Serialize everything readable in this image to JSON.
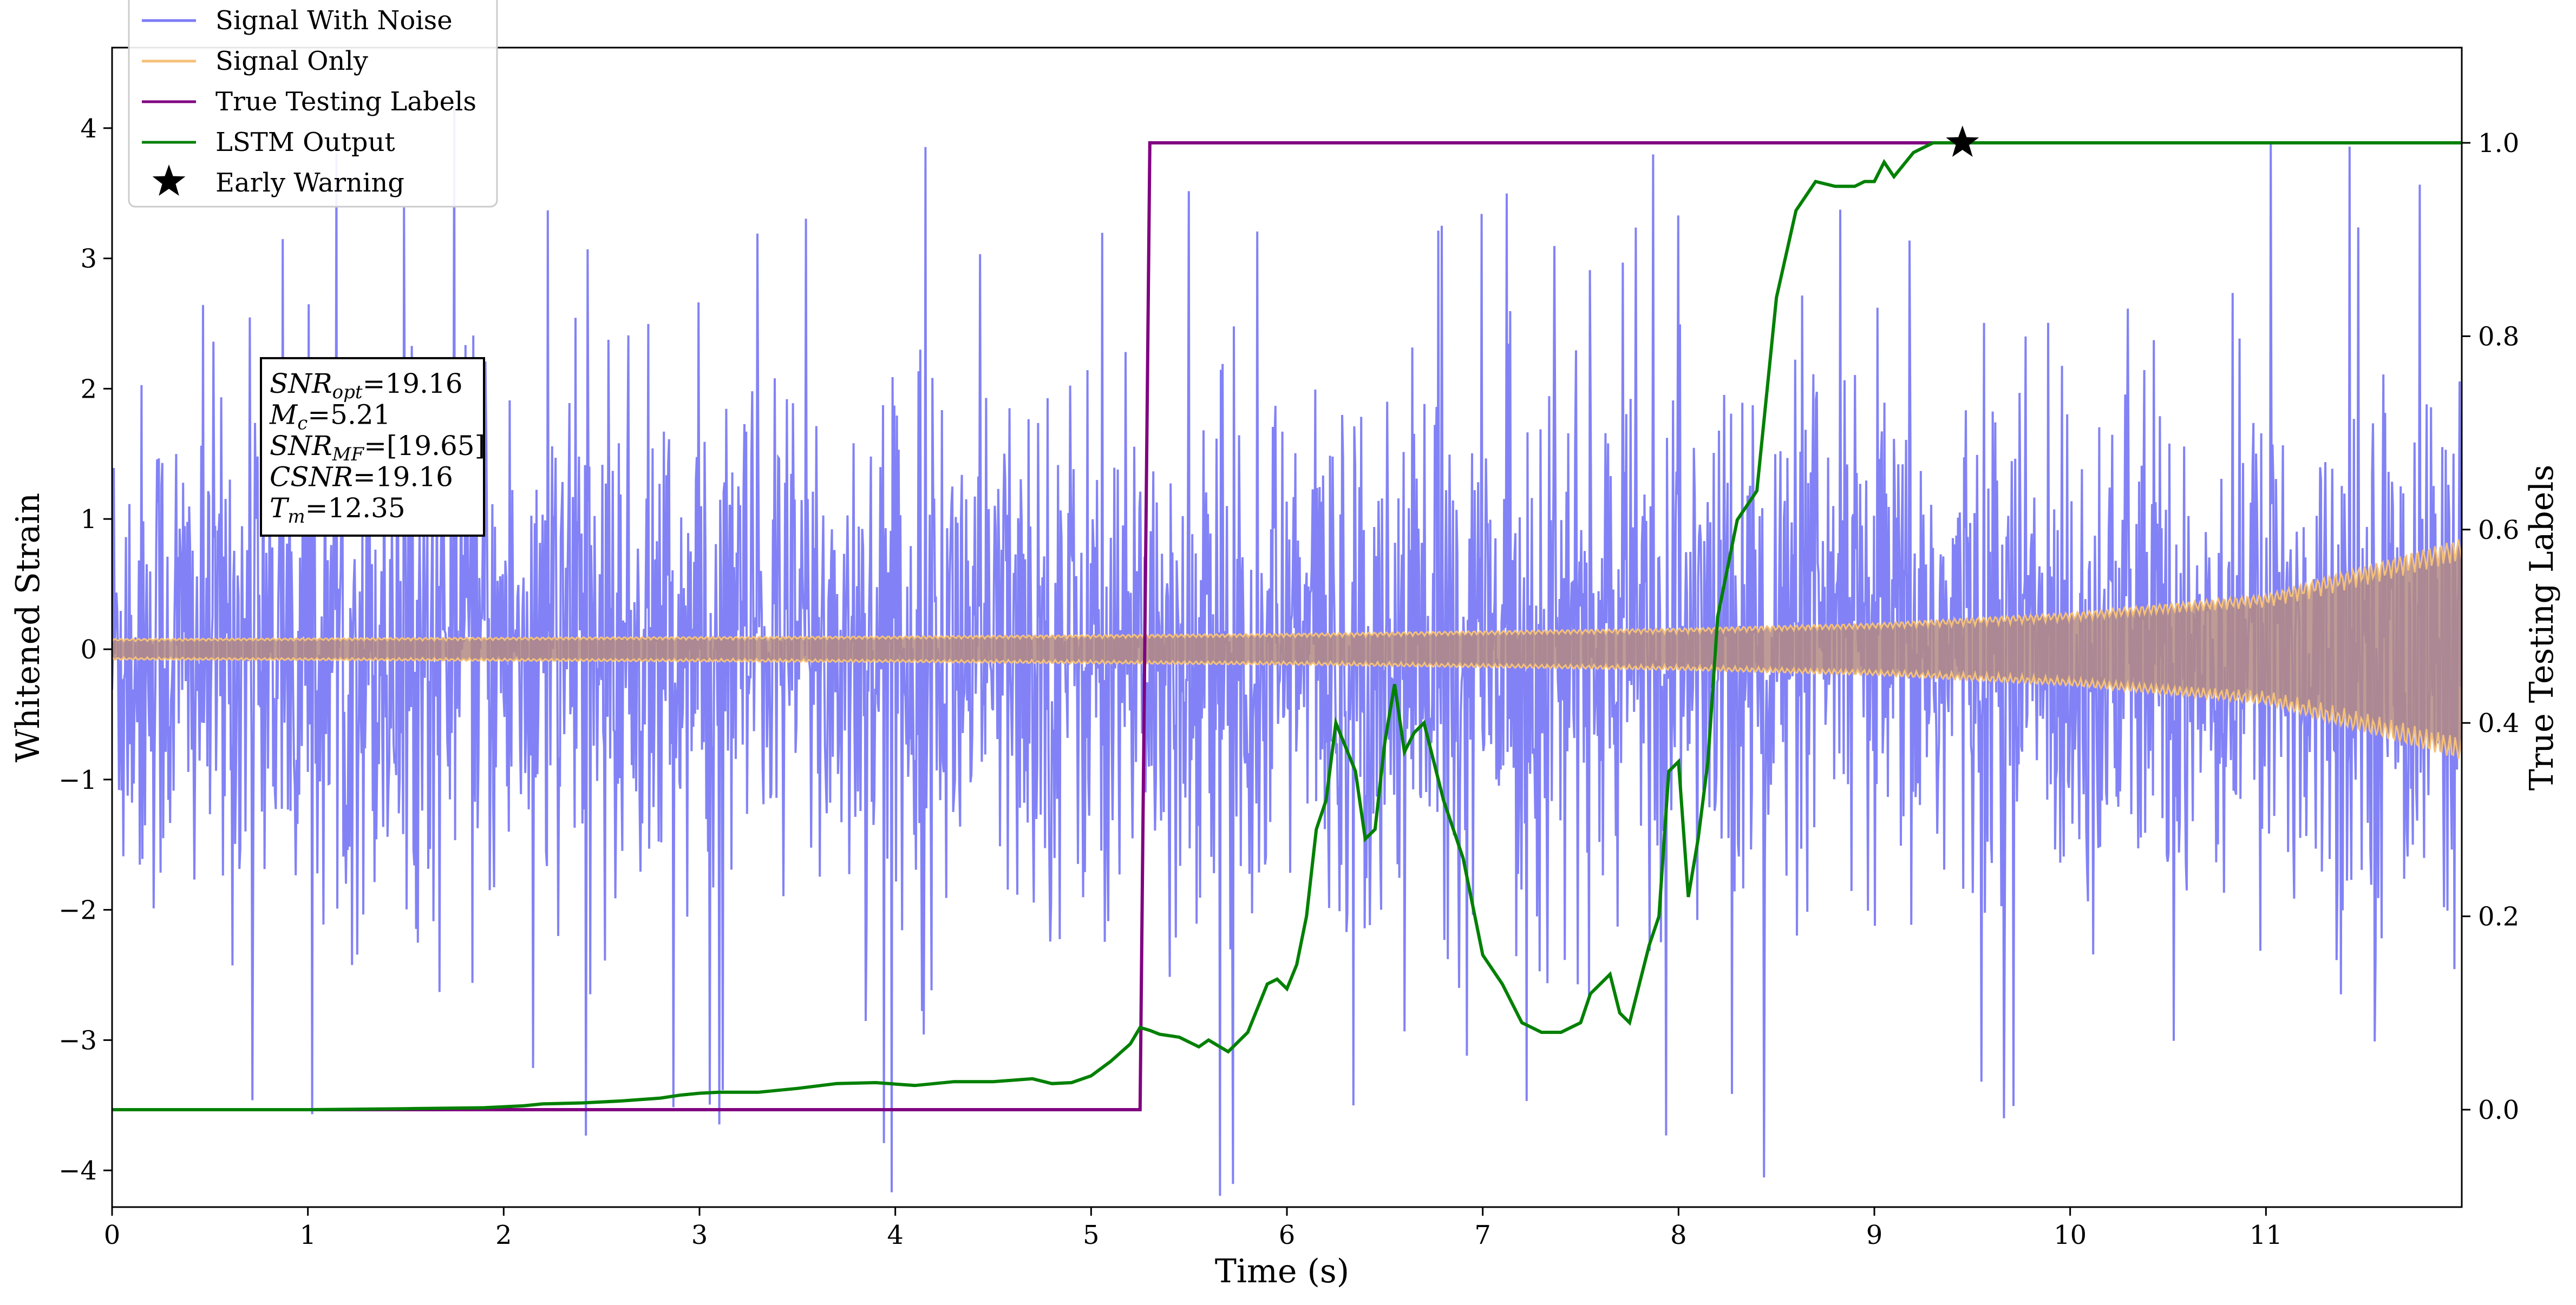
{
  "chart_data": {
    "type": "line",
    "xlabel": "Time (s)",
    "ylabel": "Whitened Strain",
    "y2label": "True Testing Labels",
    "xlim": [
      0,
      12
    ],
    "ylim": [
      -4.25,
      4.6
    ],
    "y2lim": [
      -0.1,
      1.1
    ],
    "grid": false,
    "legend_position": "upper-left",
    "x_ticks": [
      0,
      1,
      2,
      3,
      4,
      5,
      6,
      7,
      8,
      9,
      10,
      11
    ],
    "x_tick_labels": [
      "0",
      "1",
      "2",
      "3",
      "4",
      "5",
      "6",
      "7",
      "8",
      "9",
      "10",
      "11"
    ],
    "y_ticks": [
      -4,
      -3,
      -2,
      -1,
      0,
      1,
      2,
      3,
      4
    ],
    "y_tick_labels": [
      "−4",
      "−3",
      "−2",
      "−1",
      "0",
      "1",
      "2",
      "3",
      "4"
    ],
    "y2_ticks": [
      0.0,
      0.2,
      0.4,
      0.6,
      0.8,
      1.0
    ],
    "y2_tick_labels": [
      "0.0",
      "0.2",
      "0.4",
      "0.6",
      "0.8",
      "1.0"
    ],
    "series": [
      {
        "name": "Signal With Noise",
        "color": "#7b7bf5",
        "axis": "left",
        "style": "dense noise, approx. standard deviation 1.0 whitened strain, peaks to about ±4.2, sampled over 0–12 s"
      },
      {
        "name": "Signal Only",
        "color": "#f5c07a",
        "axis": "left",
        "envelope": {
          "x": [
            0,
            2,
            4,
            6,
            8,
            9,
            10,
            11,
            12
          ],
          "amplitude": [
            0.08,
            0.09,
            0.1,
            0.12,
            0.16,
            0.2,
            0.28,
            0.42,
            0.85
          ]
        }
      },
      {
        "name": "True Testing Labels",
        "color": "#800080",
        "axis": "right",
        "x": [
          0,
          5.25,
          5.3,
          12
        ],
        "y": [
          0,
          0,
          1,
          1
        ]
      },
      {
        "name": "LSTM Output",
        "color": "#008000",
        "axis": "right",
        "x": [
          0,
          0.5,
          1.0,
          1.5,
          1.9,
          2.1,
          2.2,
          2.4,
          2.6,
          2.8,
          2.9,
          3.0,
          3.1,
          3.3,
          3.5,
          3.7,
          3.9,
          4.1,
          4.3,
          4.5,
          4.7,
          4.8,
          4.9,
          5.0,
          5.1,
          5.2,
          5.25,
          5.3,
          5.35,
          5.45,
          5.55,
          5.6,
          5.7,
          5.8,
          5.9,
          5.95,
          6.0,
          6.05,
          6.1,
          6.15,
          6.2,
          6.25,
          6.3,
          6.35,
          6.4,
          6.45,
          6.5,
          6.55,
          6.6,
          6.65,
          6.7,
          6.8,
          6.9,
          7.0,
          7.1,
          7.2,
          7.3,
          7.4,
          7.5,
          7.55,
          7.6,
          7.65,
          7.7,
          7.75,
          7.8,
          7.85,
          7.9,
          7.95,
          8.0,
          8.05,
          8.1,
          8.15,
          8.2,
          8.3,
          8.4,
          8.5,
          8.6,
          8.7,
          8.8,
          8.9,
          8.95,
          9.0,
          9.05,
          9.1,
          9.2,
          9.3,
          9.4,
          9.5,
          10,
          11,
          12
        ],
        "y": [
          0.0,
          0.0,
          0.0,
          0.001,
          0.002,
          0.004,
          0.006,
          0.007,
          0.009,
          0.012,
          0.015,
          0.017,
          0.018,
          0.018,
          0.022,
          0.027,
          0.028,
          0.025,
          0.029,
          0.029,
          0.032,
          0.027,
          0.028,
          0.035,
          0.05,
          0.068,
          0.085,
          0.082,
          0.078,
          0.075,
          0.065,
          0.072,
          0.06,
          0.08,
          0.13,
          0.135,
          0.125,
          0.15,
          0.2,
          0.29,
          0.32,
          0.4,
          0.375,
          0.35,
          0.28,
          0.29,
          0.38,
          0.44,
          0.37,
          0.39,
          0.4,
          0.32,
          0.26,
          0.16,
          0.13,
          0.09,
          0.08,
          0.08,
          0.09,
          0.12,
          0.13,
          0.14,
          0.1,
          0.09,
          0.13,
          0.17,
          0.2,
          0.35,
          0.36,
          0.22,
          0.28,
          0.36,
          0.51,
          0.61,
          0.64,
          0.84,
          0.93,
          0.96,
          0.955,
          0.955,
          0.96,
          0.96,
          0.98,
          0.965,
          0.99,
          1.0,
          1.0,
          1.0,
          1.0,
          1.0,
          1.0
        ]
      }
    ],
    "early_warning": {
      "name": "Early Warning",
      "x": 9.45,
      "y": 1.0,
      "marker": "star",
      "color": "#000000"
    },
    "annotation_lines": [
      {
        "symbol": "SNR",
        "sub": "opt",
        "value": "=19.16"
      },
      {
        "symbol": "M",
        "sub": "c",
        "value": "=5.21"
      },
      {
        "symbol": "SNR",
        "sub": "MF",
        "value": "=[19.65]"
      },
      {
        "symbol": "CSNR",
        "sub": "",
        "value": "=19.16"
      },
      {
        "symbol": "T",
        "sub": "m",
        "value": "=12.35"
      }
    ]
  }
}
